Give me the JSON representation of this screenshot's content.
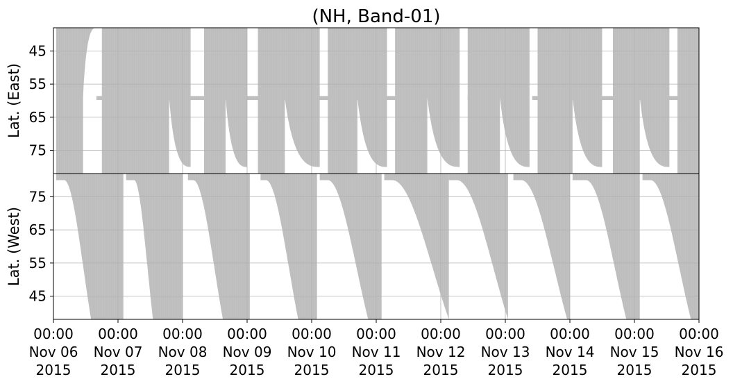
{
  "chart_data": {
    "type": "area",
    "title": "(NH, Band-01)",
    "xlabel": "",
    "x_ticks": [
      {
        "time": "00:00",
        "date": "Nov 06",
        "year": "2015"
      },
      {
        "time": "00:00",
        "date": "Nov 07",
        "year": "2015"
      },
      {
        "time": "00:00",
        "date": "Nov 08",
        "year": "2015"
      },
      {
        "time": "00:00",
        "date": "Nov 09",
        "year": "2015"
      },
      {
        "time": "00:00",
        "date": "Nov 10",
        "year": "2015"
      },
      {
        "time": "00:00",
        "date": "Nov 11",
        "year": "2015"
      },
      {
        "time": "00:00",
        "date": "Nov 12",
        "year": "2015"
      },
      {
        "time": "00:00",
        "date": "Nov 13",
        "year": "2015"
      },
      {
        "time": "00:00",
        "date": "Nov 14",
        "year": "2015"
      },
      {
        "time": "00:00",
        "date": "Nov 15",
        "year": "2015"
      },
      {
        "time": "00:00",
        "date": "Nov 16",
        "year": "2015"
      }
    ],
    "xlim": [
      "2015-11-06 00:00",
      "2015-11-16 00:00"
    ],
    "grid": true,
    "fill_color": "#bdbdbd",
    "panels": [
      {
        "ylabel": "Lat. (East)",
        "ylim": [
          38,
          82
        ],
        "y_inverted": true,
        "yticks": [
          45,
          55,
          65,
          75
        ],
        "band_lat": [
          58.6,
          59.8
        ],
        "band_segments": [
          [
            "2015-11-06 16:00",
            "2015-11-11 19:00"
          ],
          [
            "2015-11-12 10:00",
            "2015-11-12 19:00"
          ],
          [
            "2015-11-13 10:00",
            "2015-11-16 00:00"
          ]
        ],
        "shapes": [
          {
            "start": "2015-11-06 01:00",
            "full_until": "2015-11-06 11:00",
            "decay_to": "2015-11-06 16:00",
            "min_lat": 38
          },
          {
            "start": "2015-11-06 18:00",
            "full_until": "2015-11-07 19:00",
            "decay_to": "2015-11-08 03:00",
            "min_lat": 80
          },
          {
            "start": "2015-11-08 08:00",
            "full_until": "2015-11-08 16:00",
            "decay_to": "2015-11-09 00:00",
            "min_lat": 80
          },
          {
            "start": "2015-11-09 04:00",
            "full_until": "2015-11-09 14:00",
            "decay_to": "2015-11-10 03:00",
            "min_lat": 80
          },
          {
            "start": "2015-11-10 06:00",
            "full_until": "2015-11-10 17:00",
            "decay_to": "2015-11-11 04:00",
            "min_lat": 80
          },
          {
            "start": "2015-11-11 07:00",
            "full_until": "2015-11-11 19:00",
            "decay_to": "2015-11-12 07:00",
            "min_lat": 80
          },
          {
            "start": "2015-11-12 10:00",
            "full_until": "2015-11-12 22:00",
            "decay_to": "2015-11-13 09:00",
            "min_lat": 80
          },
          {
            "start": "2015-11-13 12:00",
            "full_until": "2015-11-14 01:00",
            "decay_to": "2015-11-14 12:00",
            "min_lat": 80
          },
          {
            "start": "2015-11-14 16:00",
            "full_until": "2015-11-15 02:00",
            "decay_to": "2015-11-15 13:00",
            "min_lat": 80
          },
          {
            "start": "2015-11-15 16:00",
            "full_until": "2015-11-16 00:00",
            "decay_to": "2015-11-16 00:00",
            "min_lat": 80
          }
        ]
      },
      {
        "ylabel": "Lat. (West)",
        "ylim": [
          38,
          82
        ],
        "y_inverted": false,
        "yticks": [
          45,
          55,
          65,
          75
        ],
        "shapes": [
          {
            "start": "2015-11-06 01:00",
            "top_until": "2015-11-06 04:00",
            "rise_to": "2015-11-06 14:00",
            "end": "2015-11-07 02:00"
          },
          {
            "start": "2015-11-07 03:00",
            "top_until": "2015-11-07 06:00",
            "rise_to": "2015-11-07 13:00",
            "end": "2015-11-08 00:00"
          },
          {
            "start": "2015-11-08 02:00",
            "top_until": "2015-11-08 04:00",
            "rise_to": "2015-11-08 15:00",
            "end": "2015-11-09 01:00"
          },
          {
            "start": "2015-11-09 05:00",
            "top_until": "2015-11-09 07:00",
            "rise_to": "2015-11-09 19:00",
            "end": "2015-11-10 02:00"
          },
          {
            "start": "2015-11-10 03:00",
            "top_until": "2015-11-10 06:00",
            "rise_to": "2015-11-10 21:00",
            "end": "2015-11-11 02:00"
          },
          {
            "start": "2015-11-11 03:00",
            "top_until": "2015-11-11 06:00",
            "rise_to": "2015-11-12 03:00",
            "end": "2015-11-12 03:00"
          },
          {
            "start": "2015-11-12 03:00",
            "top_until": "2015-11-12 06:00",
            "rise_to": "2015-11-13 01:00",
            "end": "2015-11-13 01:00"
          },
          {
            "start": "2015-11-13 03:00",
            "top_until": "2015-11-13 06:00",
            "rise_to": "2015-11-13 23:00",
            "end": "2015-11-14 00:00"
          },
          {
            "start": "2015-11-14 01:00",
            "top_until": "2015-11-14 06:00",
            "rise_to": "2015-11-14 21:00",
            "end": "2015-11-15 02:00"
          },
          {
            "start": "2015-11-15 03:00",
            "top_until": "2015-11-15 06:00",
            "rise_to": "2015-11-15 21:00",
            "end": "2015-11-16 00:00"
          }
        ]
      }
    ]
  }
}
